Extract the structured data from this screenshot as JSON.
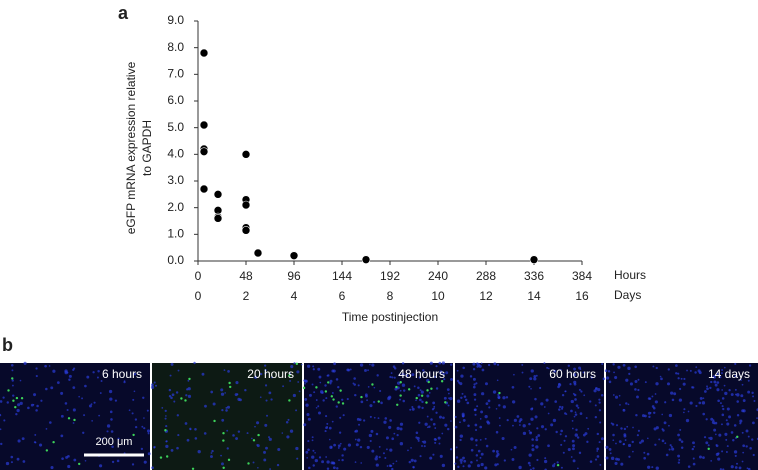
{
  "panel_labels": [
    "a",
    "b"
  ],
  "chart_data": {
    "type": "scatter",
    "ylabel": [
      "eGFP mRNA expression relative",
      "to GAPDH"
    ],
    "xlabel": "Time postinjection",
    "x_unit": "Hours",
    "x2_unit": "Days",
    "color": "#000000",
    "x": [
      6,
      6,
      6,
      6,
      6,
      20,
      20,
      20,
      20,
      48,
      48,
      48,
      48,
      48,
      60,
      96,
      168,
      336
    ],
    "values": [
      7.8,
      5.1,
      4.2,
      4.1,
      2.7,
      2.5,
      1.9,
      1.65,
      1.6,
      4.0,
      2.3,
      2.1,
      1.25,
      1.15,
      0.3,
      0.2,
      0.05,
      0.05
    ],
    "xlim": [
      0,
      384
    ],
    "xticks": [
      0,
      48,
      96,
      144,
      192,
      240,
      288,
      336,
      384
    ],
    "x2lim": [
      0,
      16
    ],
    "x2ticks": [
      0,
      2,
      4,
      6,
      8,
      10,
      12,
      14,
      16
    ],
    "ylim": [
      0,
      9
    ],
    "yticks": [
      {
        "value": 0,
        "label": "0.0"
      },
      {
        "value": 1,
        "label": "1.0"
      },
      {
        "value": 2,
        "label": "2.0"
      },
      {
        "value": 3,
        "label": "3.0"
      },
      {
        "value": 4,
        "label": "4.0"
      },
      {
        "value": 5,
        "label": "5.0"
      },
      {
        "value": 6,
        "label": "6.0"
      },
      {
        "value": 7,
        "label": "7.0"
      },
      {
        "value": 8,
        "label": "8.0"
      },
      {
        "value": 9,
        "label": "9.0"
      }
    ]
  },
  "images": [
    {
      "label": "6 hours"
    },
    {
      "label": "20 hours"
    },
    {
      "label": "48 hours"
    },
    {
      "label": "60 hours"
    },
    {
      "label": "14 days"
    }
  ],
  "scale_bar": "200 μm"
}
